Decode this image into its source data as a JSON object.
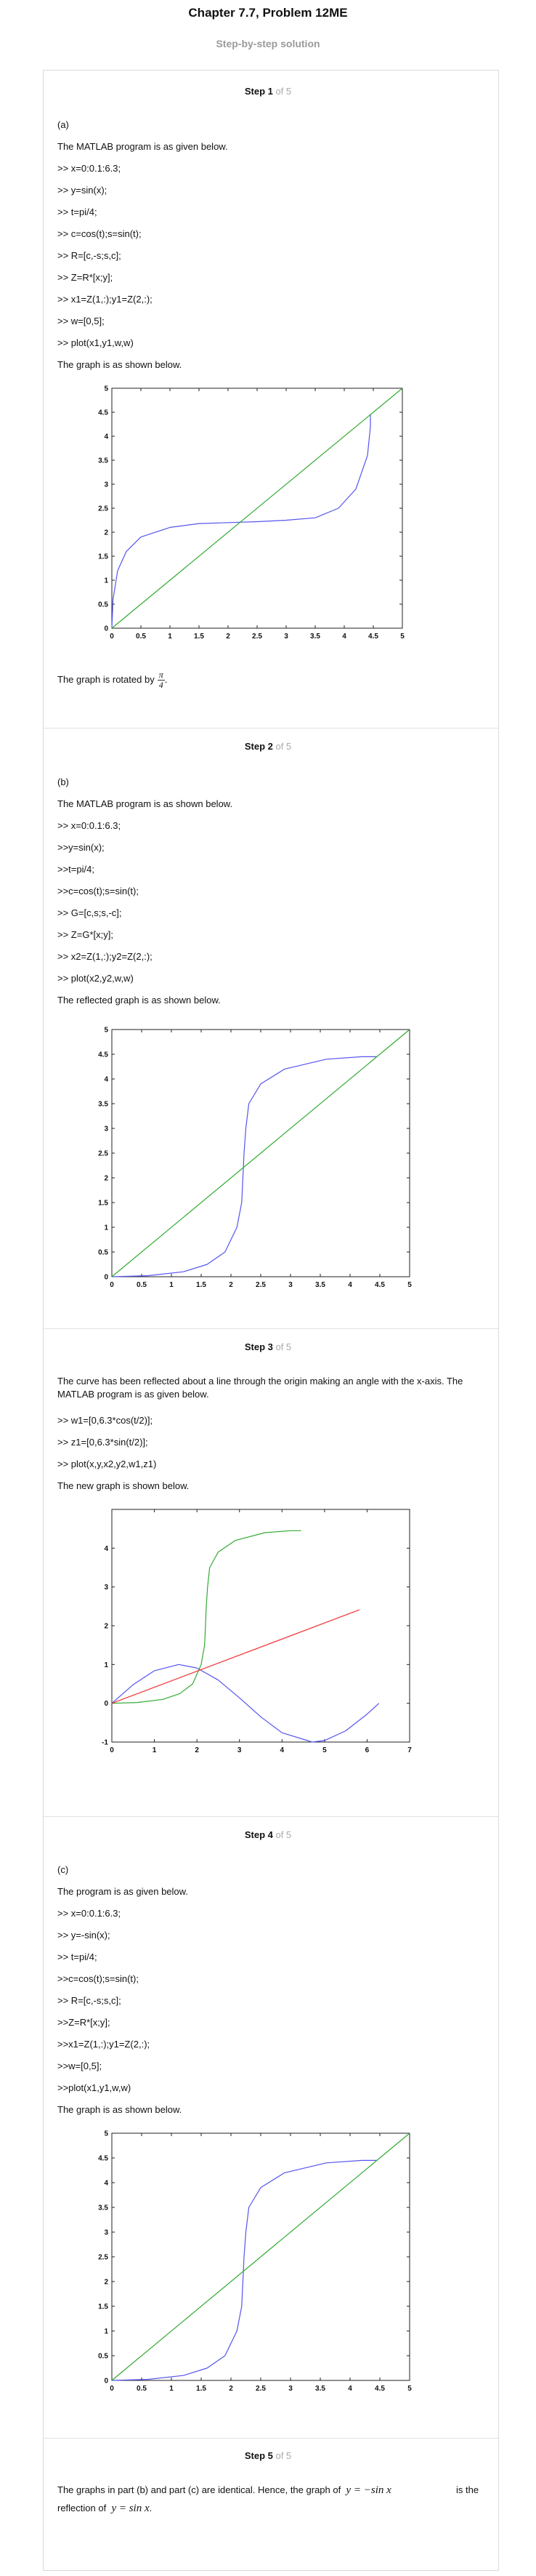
{
  "header": {
    "title": "Chapter 7.7, Problem 12ME",
    "subtitle": "Step-by-step solution"
  },
  "steps": [
    {
      "label": "Step 1",
      "of": " of 5",
      "lines": [
        "(a)",
        "The MATLAB program is as given below.",
        ">> x=0:0.1:6.3;",
        ">> y=sin(x);",
        ">> t=pi/4;",
        ">> c=cos(t);s=sin(t);",
        ">> R=[c,-s;s,c];",
        ">> Z=R*[x;y];",
        ">> x1=Z(1,:);y1=Z(2,:);",
        ">> w=[0,5];",
        ">> plot(x1,y1,w,w)",
        "The graph is as shown below."
      ],
      "after": "The graph is rotated by",
      "frac": {
        "num": "π",
        "den": "4"
      },
      "after_end": "."
    },
    {
      "label": "Step 2",
      "of": " of 5",
      "lines": [
        "(b)",
        "The MATLAB program is as shown below.",
        ">> x=0:0.1:6.3;",
        ">>y=sin(x);",
        ">>t=pi/4;",
        ">>c=cos(t);s=sin(t);",
        ">> G=[c,s;s,-c];",
        ">> Z=G*[x;y];",
        ">> x2=Z(1,:);y2=Z(2,:);",
        ">> plot(x2,y2,w,w)",
        "The reflected graph is as shown below."
      ]
    },
    {
      "label": "Step 3",
      "of": " of 5",
      "lines": [
        "The curve has been reflected about a line through the origin making an angle with the x-axis. The MATLAB program is as given below.",
        ">> w1=[0,6.3*cos(t/2)];",
        ">> z1=[0,6.3*sin(t/2)];",
        ">> plot(x,y,x2,y2,w1,z1)",
        "The new graph is shown below."
      ]
    },
    {
      "label": "Step 4",
      "of": " of 5",
      "lines": [
        "(c)",
        "The program is as given below.",
        ">> x=0:0.1:6.3;",
        ">> y=-sin(x);",
        ">> t=pi/4;",
        ">>c=cos(t);s=sin(t);",
        ">> R=[c,-s;s,c];",
        ">>Z=R*[x;y];",
        ">>x1=Z(1,:);y1=Z(2,:);",
        ">>w=[0,5];",
        ">>plot(x1,y1,w,w)",
        "The graph is as shown below."
      ]
    },
    {
      "label": "Step 5",
      "of": " of 5",
      "text1": "The graphs in part (b) and part (c) are identical. Hence, the graph of",
      "math1": "y = −sin x",
      "text2": "is the reflection of",
      "math2": "y = sin x",
      "text3": "."
    }
  ],
  "chart_data": [
    {
      "type": "line",
      "title": "",
      "xlabel": "",
      "ylabel": "",
      "xlim": [
        0,
        5
      ],
      "ylim": [
        0,
        5
      ],
      "xticks": [
        "0",
        "0.5",
        "1",
        "1.5",
        "2",
        "2.5",
        "3",
        "3.5",
        "4",
        "4.5",
        "5"
      ],
      "yticks": [
        "0",
        "0.5",
        "1",
        "1.5",
        "2",
        "2.5",
        "3",
        "3.5",
        "4",
        "4.5",
        "5"
      ],
      "series": [
        {
          "color": "#5555ee",
          "x": [
            0,
            0.02,
            0.1,
            0.25,
            0.5,
            1,
            1.5,
            2,
            2.5,
            3,
            3.5,
            3.9,
            4.2,
            4.4,
            4.45,
            4.45
          ],
          "y": [
            0,
            0.6,
            1.2,
            1.6,
            1.9,
            2.1,
            2.18,
            2.2,
            2.22,
            2.25,
            2.3,
            2.5,
            2.9,
            3.6,
            4.2,
            4.45
          ]
        },
        {
          "color": "#33aa33",
          "x": [
            0,
            5
          ],
          "y": [
            0,
            5
          ]
        }
      ]
    },
    {
      "type": "line",
      "title": "",
      "xlabel": "",
      "ylabel": "",
      "xlim": [
        0,
        5
      ],
      "ylim": [
        0,
        5
      ],
      "xticks": [
        "0",
        "0.5",
        "1",
        "1.5",
        "2",
        "2.5",
        "3",
        "3.5",
        "4",
        "4.5",
        "5"
      ],
      "yticks": [
        "0",
        "0.5",
        "1",
        "1.5",
        "2",
        "2.5",
        "3",
        "3.5",
        "4",
        "4.5",
        "5"
      ],
      "series": [
        {
          "color": "#5555ee",
          "x": [
            0,
            0.6,
            1.2,
            1.6,
            1.9,
            2.1,
            2.18,
            2.2,
            2.22,
            2.25,
            2.3,
            2.5,
            2.9,
            3.6,
            4.2,
            4.45
          ],
          "y": [
            0,
            0.02,
            0.1,
            0.25,
            0.5,
            1,
            1.5,
            2,
            2.5,
            3,
            3.5,
            3.9,
            4.2,
            4.4,
            4.45,
            4.45
          ]
        },
        {
          "color": "#33aa33",
          "x": [
            0,
            5
          ],
          "y": [
            0,
            5
          ]
        }
      ]
    },
    {
      "type": "line",
      "title": "",
      "xlabel": "",
      "ylabel": "",
      "xlim": [
        0,
        7
      ],
      "ylim": [
        -1,
        5
      ],
      "xticks": [
        "0",
        "1",
        "2",
        "3",
        "4",
        "5",
        "6",
        "7"
      ],
      "yticks": [
        "-1",
        "0",
        "1",
        "2",
        "3",
        "4"
      ],
      "series": [
        {
          "color": "#5555ee",
          "x": [
            0,
            0.5,
            1,
            1.57,
            2,
            2.5,
            3,
            3.5,
            4,
            4.71,
            5,
            5.5,
            6,
            6.28
          ],
          "y": [
            0,
            0.48,
            0.84,
            1,
            0.91,
            0.6,
            0.14,
            -0.35,
            -0.76,
            -1,
            -0.96,
            -0.71,
            -0.28,
            0
          ]
        },
        {
          "color": "#33aa33",
          "x": [
            0,
            0.6,
            1.2,
            1.6,
            1.9,
            2.1,
            2.18,
            2.2,
            2.22,
            2.25,
            2.3,
            2.5,
            2.9,
            3.6,
            4.2,
            4.45
          ],
          "y": [
            0,
            0.02,
            0.1,
            0.25,
            0.5,
            1,
            1.5,
            2,
            2.5,
            3,
            3.5,
            3.9,
            4.2,
            4.4,
            4.45,
            4.45
          ]
        },
        {
          "color": "#ee3333",
          "x": [
            0,
            5.82
          ],
          "y": [
            0,
            2.41
          ]
        }
      ]
    },
    {
      "type": "line",
      "title": "",
      "xlabel": "",
      "ylabel": "",
      "xlim": [
        0,
        5
      ],
      "ylim": [
        0,
        5
      ],
      "xticks": [
        "0",
        "0.5",
        "1",
        "1.5",
        "2",
        "2.5",
        "3",
        "3.5",
        "4",
        "4.5",
        "5"
      ],
      "yticks": [
        "0",
        "0.5",
        "1",
        "1.5",
        "2",
        "2.5",
        "3",
        "3.5",
        "4",
        "4.5",
        "5"
      ],
      "series": [
        {
          "color": "#5555ee",
          "x": [
            0,
            0.6,
            1.2,
            1.6,
            1.9,
            2.1,
            2.18,
            2.2,
            2.22,
            2.25,
            2.3,
            2.5,
            2.9,
            3.6,
            4.2,
            4.45
          ],
          "y": [
            0,
            0.02,
            0.1,
            0.25,
            0.5,
            1,
            1.5,
            2,
            2.5,
            3,
            3.5,
            3.9,
            4.2,
            4.4,
            4.45,
            4.45
          ]
        },
        {
          "color": "#33aa33",
          "x": [
            0,
            5
          ],
          "y": [
            0,
            5
          ]
        }
      ]
    }
  ]
}
